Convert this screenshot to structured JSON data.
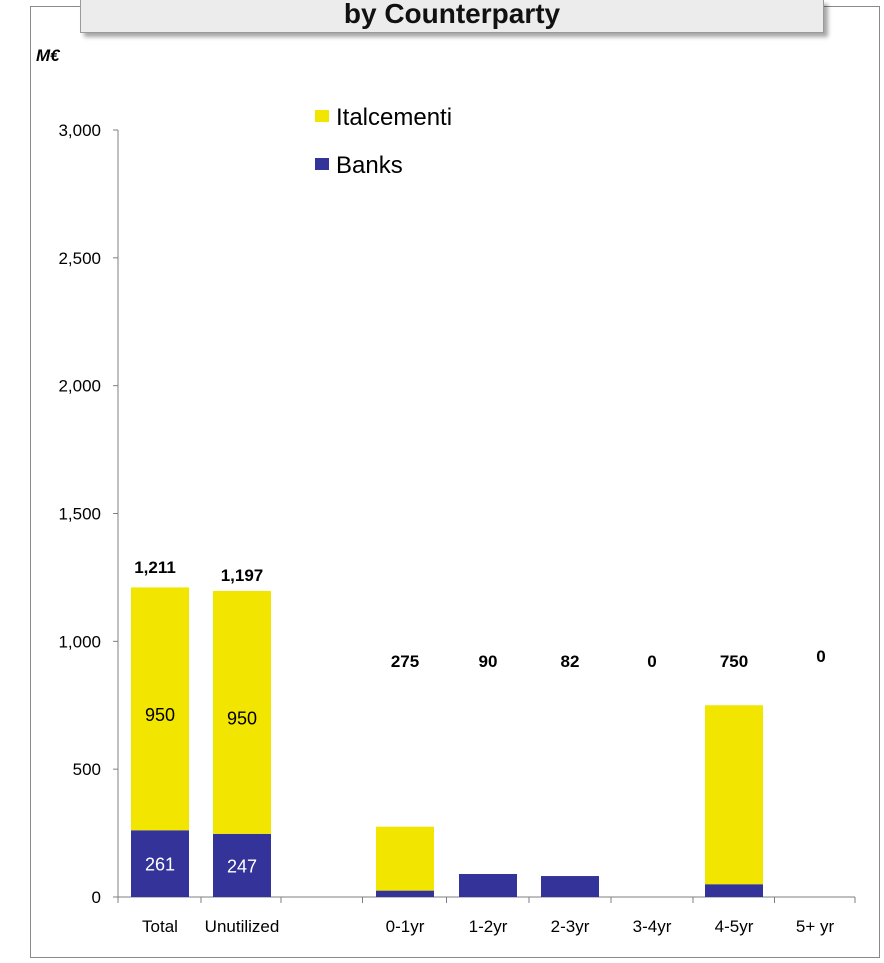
{
  "title": "by Counterparty",
  "unit_label": "M€",
  "colors": {
    "Italcementi": "#f2e600",
    "Banks": "#333399"
  },
  "chart_data": {
    "type": "bar",
    "stacked": true,
    "categories": [
      "Total",
      "Unutilized",
      "",
      "0-1yr",
      "1-2yr",
      "2-3yr",
      "3-4yr",
      "4-5yr",
      "5+ yr"
    ],
    "series": [
      {
        "name": "Banks",
        "values": [
          261,
          247,
          null,
          25,
          90,
          82,
          0,
          50,
          0
        ],
        "labels": [
          "261",
          "247",
          "",
          "",
          "",
          "",
          "",
          "",
          ""
        ]
      },
      {
        "name": "Italcementi",
        "values": [
          950,
          950,
          null,
          250,
          0,
          0,
          0,
          700,
          0
        ],
        "labels": [
          "950",
          "950",
          "",
          "",
          "",
          "",
          "",
          "",
          ""
        ]
      }
    ],
    "totals": [
      1211,
      1197,
      null,
      275,
      90,
      82,
      0,
      750,
      0
    ],
    "total_labels": [
      "1,211",
      "1,197",
      "",
      "275",
      "90",
      "82",
      "0",
      "750",
      "0"
    ],
    "ylim": [
      0,
      3000
    ],
    "yticks": [
      0,
      500,
      1000,
      1500,
      2000,
      2500,
      3000
    ],
    "ytick_labels": [
      "0",
      "500",
      "1,000",
      "1,500",
      "2,000",
      "2,500",
      "3,000"
    ],
    "legend": {
      "position": "top-center",
      "entries": [
        "Italcementi",
        "Banks"
      ]
    },
    "grid": false
  }
}
